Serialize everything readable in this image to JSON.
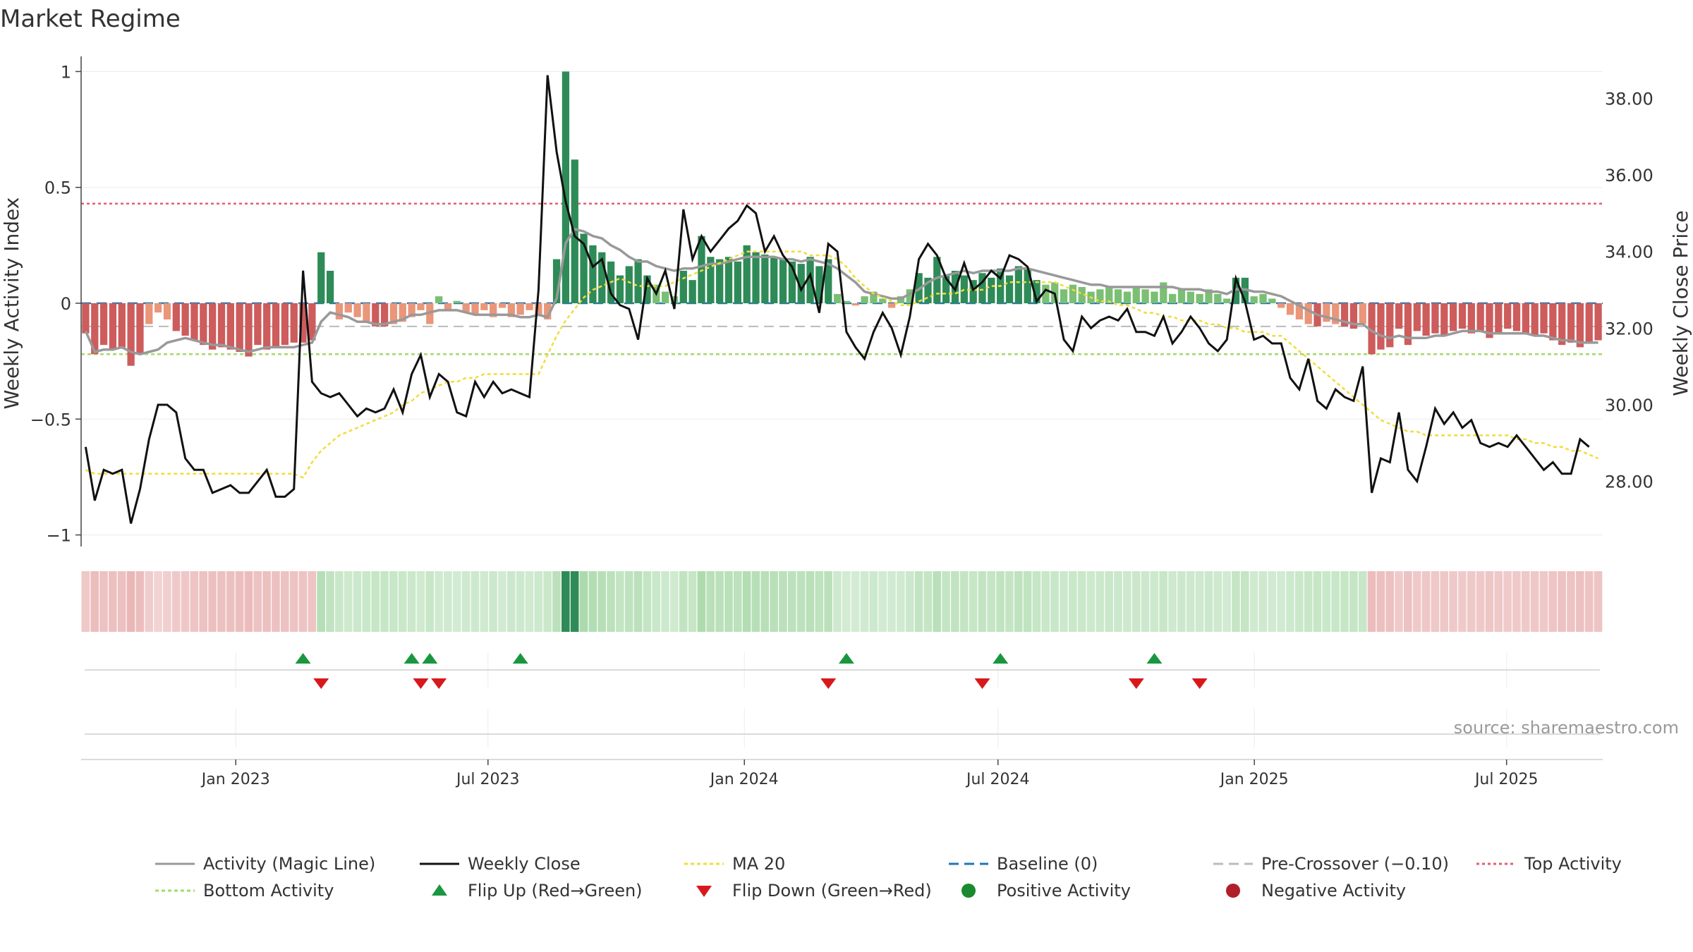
{
  "title": "Market Regime",
  "source_note": "source: sharemaestro.com",
  "colors": {
    "pos_dark": "#2e8b57",
    "pos_light": "#7bbf74",
    "neg_dark": "#cd5c5c",
    "neg_light": "#e9967a",
    "magic_line": "#999999",
    "close_line": "#111111",
    "ma20": "#f2dc3a",
    "baseline": "#1f77b4",
    "pre_crossover": "#bbbbbb",
    "top_activity": "#e06070",
    "bottom_activity": "#a6d96a",
    "flip_up": "#1a9641",
    "flip_down": "#d7191c",
    "strip_green": "#a8d8a8",
    "strip_red": "#e8b0b0"
  },
  "chart_data": {
    "type": "bar",
    "x_axis": {
      "ticks": [
        "Jan 2023",
        "Jul 2023",
        "Jan 2024",
        "Jul 2024",
        "Jan 2025",
        "Jul 2025"
      ],
      "range": [
        "2022-09-12",
        "2025-09-08"
      ]
    },
    "left_axis": {
      "label": "Weekly Activity Index",
      "range": [
        -1.05,
        1.05
      ],
      "ticks": [
        "1",
        "0.5",
        "0",
        "−0.5",
        "−1"
      ],
      "tick_values": [
        1,
        0.5,
        0,
        -0.5,
        -1
      ]
    },
    "right_axis": {
      "label": "Weekly Close Price",
      "range": [
        26.3,
        39.0
      ],
      "ticks": [
        "38.00",
        "36.00",
        "34.00",
        "32.00",
        "30.00",
        "28.00"
      ],
      "tick_values": [
        38,
        36,
        34,
        32,
        30,
        28
      ]
    },
    "reference_lines": {
      "top_activity": 0.43,
      "bottom_activity": -0.22,
      "pre_crossover": -0.1,
      "baseline": 0
    },
    "series": [
      {
        "name": "Weekly Activity (bars)",
        "values": [
          -0.13,
          -0.22,
          -0.18,
          -0.2,
          -0.19,
          -0.27,
          -0.22,
          -0.09,
          -0.04,
          -0.07,
          -0.12,
          -0.14,
          -0.16,
          -0.18,
          -0.2,
          -0.19,
          -0.2,
          -0.21,
          -0.23,
          -0.18,
          -0.2,
          -0.19,
          -0.18,
          -0.17,
          -0.17,
          -0.16,
          0.22,
          0.14,
          -0.07,
          -0.04,
          -0.06,
          -0.08,
          -0.1,
          -0.1,
          -0.09,
          -0.08,
          -0.06,
          -0.03,
          -0.09,
          0.03,
          -0.03,
          0.01,
          -0.04,
          -0.05,
          -0.03,
          -0.06,
          -0.02,
          -0.06,
          -0.05,
          -0.03,
          -0.05,
          -0.07,
          0.19,
          1.0,
          0.62,
          0.3,
          0.25,
          0.22,
          0.18,
          0.12,
          0.16,
          0.19,
          0.12,
          0.08,
          0.05,
          0.03,
          0.14,
          0.1,
          0.29,
          0.2,
          0.19,
          0.2,
          0.18,
          0.25,
          0.22,
          0.21,
          0.2,
          0.19,
          0.18,
          0.17,
          0.2,
          0.16,
          0.19,
          0.04,
          0.01,
          -0.01,
          0.03,
          0.05,
          0.02,
          -0.02,
          0.03,
          0.06,
          0.13,
          0.11,
          0.2,
          0.12,
          0.14,
          0.12,
          0.1,
          0.13,
          0.11,
          0.15,
          0.12,
          0.16,
          0.15,
          0.1,
          0.08,
          0.09,
          0.06,
          0.08,
          0.07,
          0.05,
          0.06,
          0.07,
          0.06,
          0.05,
          0.07,
          0.06,
          0.05,
          0.09,
          0.04,
          0.06,
          0.05,
          0.04,
          0.06,
          0.04,
          0.02,
          0.11,
          0.11,
          0.03,
          0.04,
          0.02,
          -0.02,
          -0.05,
          -0.07,
          -0.09,
          -0.1,
          -0.08,
          -0.09,
          -0.1,
          -0.11,
          -0.09,
          -0.22,
          -0.2,
          -0.19,
          -0.11,
          -0.18,
          -0.12,
          -0.14,
          -0.13,
          -0.14,
          -0.12,
          -0.11,
          -0.13,
          -0.12,
          -0.15,
          -0.13,
          -0.11,
          -0.12,
          -0.13,
          -0.14,
          -0.13,
          -0.16,
          -0.18,
          -0.17,
          -0.19,
          -0.17,
          -0.16
        ]
      },
      {
        "name": "Activity (Magic Line)",
        "values": [
          -0.12,
          -0.21,
          -0.2,
          -0.2,
          -0.19,
          -0.21,
          -0.22,
          -0.21,
          -0.2,
          -0.17,
          -0.16,
          -0.15,
          -0.16,
          -0.17,
          -0.18,
          -0.18,
          -0.19,
          -0.2,
          -0.21,
          -0.2,
          -0.19,
          -0.19,
          -0.19,
          -0.19,
          -0.18,
          -0.17,
          -0.08,
          -0.04,
          -0.05,
          -0.06,
          -0.08,
          -0.08,
          -0.09,
          -0.09,
          -0.08,
          -0.07,
          -0.05,
          -0.05,
          -0.04,
          -0.03,
          -0.03,
          -0.03,
          -0.04,
          -0.05,
          -0.05,
          -0.05,
          -0.05,
          -0.05,
          -0.06,
          -0.06,
          -0.05,
          -0.06,
          0.02,
          0.26,
          0.32,
          0.31,
          0.29,
          0.28,
          0.25,
          0.23,
          0.2,
          0.18,
          0.18,
          0.16,
          0.15,
          0.14,
          0.15,
          0.15,
          0.16,
          0.17,
          0.17,
          0.18,
          0.19,
          0.2,
          0.2,
          0.2,
          0.2,
          0.19,
          0.19,
          0.18,
          0.19,
          0.18,
          0.17,
          0.15,
          0.12,
          0.09,
          0.05,
          0.04,
          0.03,
          0.02,
          0.02,
          0.04,
          0.06,
          0.09,
          0.11,
          0.12,
          0.13,
          0.14,
          0.13,
          0.14,
          0.14,
          0.14,
          0.14,
          0.15,
          0.15,
          0.14,
          0.13,
          0.12,
          0.11,
          0.1,
          0.09,
          0.08,
          0.08,
          0.07,
          0.07,
          0.07,
          0.07,
          0.07,
          0.07,
          0.07,
          0.07,
          0.06,
          0.06,
          0.06,
          0.05,
          0.05,
          0.04,
          0.06,
          0.06,
          0.05,
          0.05,
          0.04,
          0.03,
          0.01,
          -0.01,
          -0.03,
          -0.05,
          -0.06,
          -0.07,
          -0.08,
          -0.09,
          -0.09,
          -0.12,
          -0.14,
          -0.15,
          -0.14,
          -0.15,
          -0.15,
          -0.15,
          -0.14,
          -0.14,
          -0.13,
          -0.12,
          -0.12,
          -0.12,
          -0.13,
          -0.13,
          -0.13,
          -0.13,
          -0.13,
          -0.14,
          -0.14,
          -0.15,
          -0.16,
          -0.16,
          -0.17,
          -0.17,
          -0.17
        ]
      },
      {
        "name": "Weekly Close",
        "values": [
          28.9,
          27.5,
          28.3,
          28.2,
          28.3,
          26.9,
          27.8,
          29.1,
          30.0,
          30.0,
          29.8,
          28.6,
          28.3,
          28.3,
          27.7,
          27.8,
          27.9,
          27.7,
          27.7,
          28.0,
          28.3,
          27.6,
          27.6,
          27.8,
          33.5,
          30.6,
          30.3,
          30.2,
          30.3,
          30.0,
          29.7,
          29.9,
          29.8,
          29.9,
          30.4,
          29.8,
          30.8,
          31.3,
          30.2,
          30.8,
          30.6,
          29.8,
          29.7,
          30.6,
          30.2,
          30.6,
          30.3,
          30.4,
          30.3,
          30.2,
          33.0,
          38.6,
          36.6,
          35.3,
          34.4,
          34.2,
          33.6,
          33.8,
          32.9,
          32.6,
          32.5,
          31.7,
          33.3,
          32.9,
          33.5,
          32.5,
          35.1,
          33.8,
          34.4,
          34.0,
          34.3,
          34.6,
          34.8,
          35.2,
          35.0,
          34.0,
          34.4,
          33.9,
          33.6,
          33.0,
          33.4,
          32.4,
          34.2,
          34.0,
          31.9,
          31.5,
          31.2,
          31.9,
          32.4,
          32.0,
          31.3,
          32.3,
          33.8,
          34.2,
          33.9,
          33.3,
          33.0,
          33.7,
          33.0,
          33.2,
          33.5,
          33.3,
          33.9,
          33.8,
          33.6,
          32.7,
          33.0,
          32.9,
          31.7,
          31.4,
          32.3,
          32.0,
          32.2,
          32.3,
          32.2,
          32.5,
          31.9,
          31.9,
          31.8,
          32.3,
          31.6,
          31.9,
          32.3,
          32.0,
          31.6,
          31.4,
          31.7,
          33.3,
          32.7,
          31.7,
          31.8,
          31.6,
          31.6,
          30.7,
          30.4,
          31.2,
          30.1,
          29.9,
          30.4,
          30.2,
          30.1,
          31.0,
          27.7,
          28.6,
          28.5,
          29.8,
          28.3,
          28.0,
          28.9,
          29.9,
          29.5,
          29.8,
          29.4,
          29.6,
          29.0,
          28.9,
          29.0,
          28.9,
          29.2,
          28.9,
          28.6,
          28.3,
          28.5,
          28.2,
          28.2,
          29.1,
          28.9
        ]
      },
      {
        "name": "MA 20",
        "values": [
          28.3,
          28.2,
          28.2,
          28.2,
          28.2,
          28.2,
          28.2,
          28.2,
          28.2,
          28.2,
          28.2,
          28.2,
          28.2,
          28.2,
          28.2,
          28.2,
          28.2,
          28.2,
          28.2,
          28.2,
          28.2,
          28.2,
          28.2,
          28.2,
          28.1,
          28.5,
          28.8,
          29.0,
          29.2,
          29.3,
          29.4,
          29.5,
          29.6,
          29.7,
          29.8,
          30.0,
          30.1,
          30.3,
          30.4,
          30.5,
          30.6,
          30.6,
          30.7,
          30.7,
          30.8,
          30.8,
          30.8,
          30.8,
          30.8,
          30.8,
          30.8,
          31.3,
          31.8,
          32.2,
          32.5,
          32.8,
          33.0,
          33.1,
          33.2,
          33.3,
          33.2,
          33.1,
          33.1,
          33.1,
          33.1,
          33.2,
          33.3,
          33.4,
          33.5,
          33.6,
          33.7,
          33.8,
          33.9,
          34.0,
          34.0,
          34.0,
          34.0,
          34.0,
          34.0,
          34.0,
          33.9,
          33.9,
          33.9,
          33.8,
          33.6,
          33.3,
          33.1,
          32.9,
          32.8,
          32.7,
          32.6,
          32.6,
          32.7,
          32.8,
          32.9,
          32.9,
          32.9,
          33.0,
          33.0,
          33.0,
          33.1,
          33.1,
          33.2,
          33.2,
          33.2,
          33.2,
          33.2,
          33.2,
          33.1,
          33.0,
          32.9,
          32.8,
          32.7,
          32.7,
          32.6,
          32.6,
          32.5,
          32.4,
          32.4,
          32.3,
          32.3,
          32.2,
          32.2,
          32.2,
          32.1,
          32.1,
          32.0,
          32.0,
          31.9,
          31.9,
          31.9,
          31.8,
          31.8,
          31.6,
          31.4,
          31.2,
          31.0,
          30.8,
          30.6,
          30.4,
          30.2,
          30.0,
          29.8,
          29.6,
          29.5,
          29.4,
          29.3,
          29.3,
          29.2,
          29.2,
          29.2,
          29.2,
          29.2,
          29.2,
          29.2,
          29.2,
          29.2,
          29.2,
          29.1,
          29.1,
          29.0,
          29.0,
          28.9,
          28.9,
          28.8,
          28.8,
          28.7,
          28.6
        ]
      }
    ],
    "flip_up_weeks": [
      24,
      36,
      38,
      48,
      84,
      101,
      118
    ],
    "flip_down_weeks": [
      26,
      37,
      39,
      82,
      99,
      116,
      123
    ]
  },
  "legend": [
    {
      "label": "Activity (Magic Line)",
      "symbol": "line",
      "color": "#999999",
      "dash": ""
    },
    {
      "label": "Weekly Close",
      "symbol": "line",
      "color": "#111111",
      "dash": ""
    },
    {
      "label": "MA 20",
      "symbol": "line",
      "color": "#f2dc3a",
      "dash": "5 4"
    },
    {
      "label": "Baseline (0)",
      "symbol": "line",
      "color": "#1f77b4",
      "dash": "14 8"
    },
    {
      "label": "Pre-Crossover (−0.10)",
      "symbol": "line",
      "color": "#bbbbbb",
      "dash": "14 8"
    },
    {
      "label": "Top Activity",
      "symbol": "line",
      "color": "#e06070",
      "dash": "4 4"
    },
    {
      "label": "Bottom Activity",
      "symbol": "line",
      "color": "#a6d96a",
      "dash": "5 4"
    },
    {
      "label": "Flip Up (Red→Green)",
      "symbol": "tri-up",
      "color": "#1a9641"
    },
    {
      "label": "Flip Down (Green→Red)",
      "symbol": "tri-down",
      "color": "#d7191c"
    },
    {
      "label": "Positive Activity",
      "symbol": "dot",
      "color": "#1a8a2e"
    },
    {
      "label": "Negative Activity",
      "symbol": "dot",
      "color": "#b0202a"
    }
  ]
}
